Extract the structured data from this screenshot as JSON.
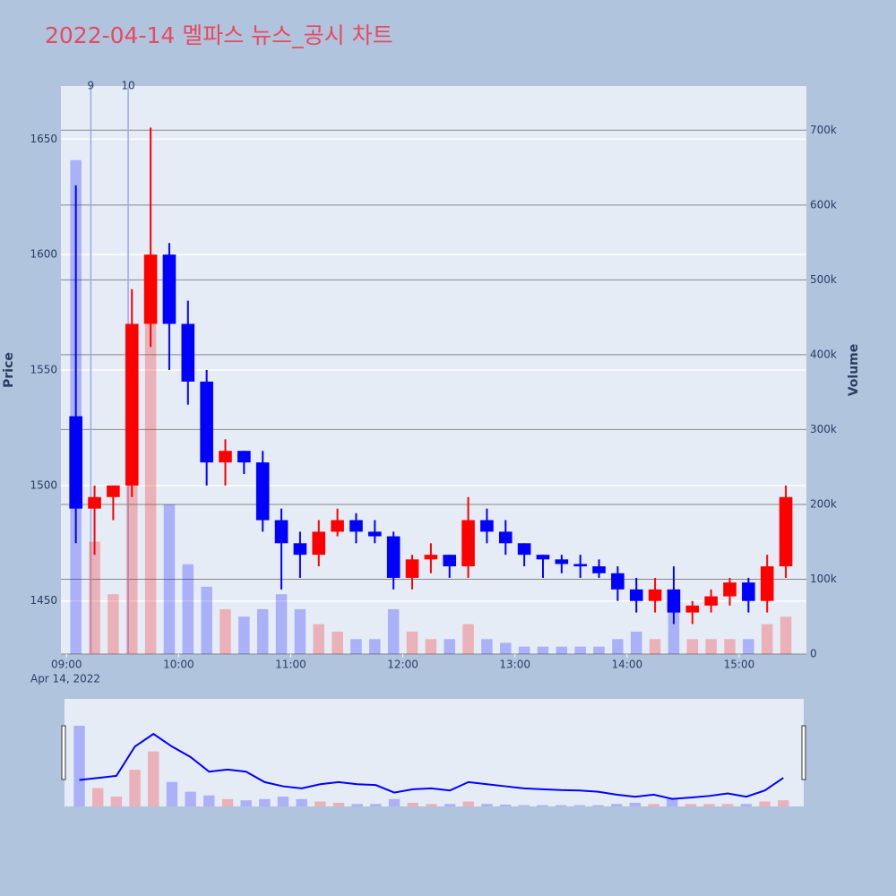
{
  "chart_data": {
    "type": "candlestick",
    "title": "2022-04-14 멜파스 뉴스_공시 차트",
    "y_label": "Price",
    "y2_label": "Volume",
    "x_date_label": "Apr 14, 2022",
    "up_color": "#ff0000",
    "down_color": "#0000ff",
    "x": [
      "09:00",
      "09:10",
      "09:20",
      "09:30",
      "09:40",
      "09:50",
      "10:00",
      "10:10",
      "10:20",
      "10:30",
      "10:40",
      "10:50",
      "11:00",
      "11:10",
      "11:20",
      "11:30",
      "11:40",
      "11:50",
      "12:00",
      "12:10",
      "12:20",
      "12:30",
      "12:40",
      "12:50",
      "13:00",
      "13:10",
      "13:20",
      "13:30",
      "13:40",
      "13:50",
      "14:00",
      "14:10",
      "14:20",
      "14:30",
      "14:40",
      "14:50",
      "15:00",
      "15:10",
      "15:20"
    ],
    "open": [
      1530,
      1490,
      1495,
      1500,
      1570,
      1600,
      1570,
      1545,
      1510,
      1515,
      1510,
      1485,
      1475,
      1470,
      1480,
      1485,
      1480,
      1478,
      1460,
      1468,
      1470,
      1465,
      1485,
      1480,
      1475,
      1470,
      1468,
      1466,
      1465,
      1462,
      1455,
      1450,
      1455,
      1445,
      1448,
      1452,
      1458,
      1450,
      1465
    ],
    "high": [
      1630,
      1500,
      1500,
      1585,
      1655,
      1605,
      1580,
      1550,
      1520,
      1515,
      1515,
      1490,
      1480,
      1485,
      1490,
      1488,
      1485,
      1480,
      1470,
      1475,
      1470,
      1495,
      1490,
      1485,
      1475,
      1470,
      1470,
      1470,
      1468,
      1465,
      1460,
      1460,
      1465,
      1450,
      1455,
      1460,
      1460,
      1470,
      1500
    ],
    "low": [
      1475,
      1470,
      1485,
      1495,
      1560,
      1550,
      1535,
      1500,
      1500,
      1505,
      1480,
      1455,
      1460,
      1465,
      1478,
      1475,
      1475,
      1455,
      1455,
      1462,
      1460,
      1460,
      1475,
      1470,
      1465,
      1460,
      1462,
      1460,
      1460,
      1450,
      1445,
      1445,
      1440,
      1440,
      1445,
      1448,
      1445,
      1445,
      1460
    ],
    "close": [
      1490,
      1495,
      1500,
      1570,
      1600,
      1570,
      1545,
      1510,
      1515,
      1510,
      1485,
      1475,
      1470,
      1480,
      1485,
      1480,
      1478,
      1460,
      1468,
      1470,
      1465,
      1485,
      1480,
      1475,
      1470,
      1468,
      1466,
      1465,
      1462,
      1455,
      1450,
      1455,
      1445,
      1448,
      1452,
      1458,
      1450,
      1465,
      1495
    ],
    "volume": [
      660000,
      150000,
      80000,
      300000,
      450000,
      200000,
      120000,
      90000,
      60000,
      50000,
      60000,
      80000,
      60000,
      40000,
      30000,
      20000,
      20000,
      60000,
      30000,
      20000,
      20000,
      40000,
      20000,
      15000,
      10000,
      10000,
      10000,
      10000,
      10000,
      20000,
      30000,
      20000,
      60000,
      20000,
      20000,
      20000,
      20000,
      40000,
      50000
    ],
    "xlim": [
      "08:57",
      "15:36"
    ],
    "xticks": [
      "09:00",
      "10:00",
      "11:00",
      "12:00",
      "13:00",
      "14:00",
      "15:00"
    ],
    "ylim": [
      1427,
      1673
    ],
    "yticks": [
      1450,
      1500,
      1550,
      1600,
      1650
    ],
    "y2lim": [
      0,
      759000
    ],
    "y2ticks": [
      0,
      {
        "value": 100000,
        "label": "100k"
      },
      {
        "value": 200000,
        "label": "200k"
      },
      {
        "value": 300000,
        "label": "300k"
      },
      {
        "value": 400000,
        "label": "400k"
      },
      {
        "value": 500000,
        "label": "500k"
      },
      {
        "value": 600000,
        "label": "600k"
      },
      {
        "value": 700000,
        "label": "700k"
      }
    ],
    "annotations": [
      {
        "x": "09:13",
        "label": "9"
      },
      {
        "x": "09:33",
        "label": "10"
      }
    ]
  }
}
